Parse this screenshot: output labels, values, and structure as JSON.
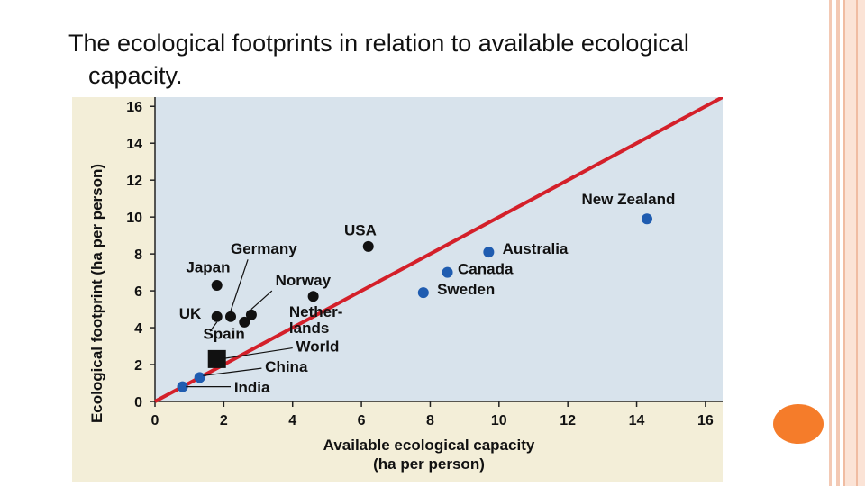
{
  "slide": {
    "title_line1": "The ecological footprints in relation to available ecological",
    "title_line2": "capacity."
  },
  "colors": {
    "background": "#ffffff",
    "plot_background": "#d8e3ec",
    "frame_background": "#f3eed8",
    "reference_line": "#d4202a",
    "black_points": "#111111",
    "blue_points": "#1f5cb0",
    "accent_orange": "#f57c2a",
    "border_peach": "#f3c9b4"
  },
  "chart_data": {
    "type": "scatter",
    "xlabel_line1": "Available ecological capacity",
    "xlabel_line2": "(ha per person)",
    "ylabel": "Ecological footprint (ha per person)",
    "xlim": [
      0,
      16.5
    ],
    "ylim": [
      0,
      16.5
    ],
    "xticks": [
      0,
      2,
      4,
      6,
      8,
      10,
      12,
      14,
      16
    ],
    "yticks": [
      0,
      2,
      4,
      6,
      8,
      10,
      12,
      14,
      16
    ],
    "grid": false,
    "reference_line": {
      "x": [
        0,
        16.5
      ],
      "y": [
        0,
        16.5
      ]
    },
    "points": [
      {
        "label": "New Zealand",
        "x": 14.3,
        "y": 9.9,
        "group": "blue",
        "marker": "circle"
      },
      {
        "label": "Australia",
        "x": 9.7,
        "y": 8.1,
        "group": "blue",
        "marker": "circle"
      },
      {
        "label": "Canada",
        "x": 8.5,
        "y": 7.0,
        "group": "blue",
        "marker": "circle"
      },
      {
        "label": "Sweden",
        "x": 7.8,
        "y": 5.9,
        "group": "blue",
        "marker": "circle"
      },
      {
        "label": "India",
        "x": 0.8,
        "y": 0.8,
        "group": "blue",
        "marker": "circle"
      },
      {
        "label": "China",
        "x": 1.3,
        "y": 1.3,
        "group": "blue",
        "marker": "circle"
      },
      {
        "label": "USA",
        "x": 6.2,
        "y": 8.4,
        "group": "black",
        "marker": "circle"
      },
      {
        "label": "Norway",
        "x": 4.6,
        "y": 5.7,
        "group": "black",
        "marker": "circle"
      },
      {
        "label": "Japan",
        "x": 1.8,
        "y": 6.3,
        "group": "black",
        "marker": "circle"
      },
      {
        "label": "Germany",
        "x": 2.2,
        "y": 4.6,
        "group": "black",
        "marker": "circle"
      },
      {
        "label": "UK",
        "x": 1.8,
        "y": 4.6,
        "group": "black",
        "marker": "circle"
      },
      {
        "label": "Spain",
        "x": 2.6,
        "y": 4.3,
        "group": "black",
        "marker": "circle"
      },
      {
        "label": "Netherlands",
        "x": 2.8,
        "y": 4.7,
        "group": "black",
        "marker": "circle"
      },
      {
        "label": "World",
        "x": 1.8,
        "y": 2.3,
        "group": "black",
        "marker": "square"
      }
    ],
    "labels": [
      {
        "text": "New Zealand",
        "x": 12.4,
        "y": 10.7,
        "bold": false
      },
      {
        "text": "Australia",
        "x": 10.1,
        "y": 8.0,
        "bold": false
      },
      {
        "text": "Canada",
        "x": 8.8,
        "y": 6.9,
        "bold": false
      },
      {
        "text": "Sweden",
        "x": 8.2,
        "y": 5.8,
        "bold": false
      },
      {
        "text": "USA",
        "x": 5.5,
        "y": 9.0,
        "bold": false
      },
      {
        "text": "Germany",
        "x": 2.2,
        "y": 8.0,
        "bold": false
      },
      {
        "text": "Japan",
        "x": 0.9,
        "y": 7.0,
        "bold": false
      },
      {
        "text": "Norway",
        "x": 3.5,
        "y": 6.3,
        "bold": false
      },
      {
        "text": "Nether-",
        "x": 3.9,
        "y": 4.6,
        "bold": false
      },
      {
        "text": "lands",
        "x": 3.9,
        "y": 3.7,
        "bold": false
      },
      {
        "text": "UK",
        "x": 0.7,
        "y": 4.5,
        "bold": false
      },
      {
        "text": "Spain",
        "x": 1.4,
        "y": 3.4,
        "bold": false
      },
      {
        "text": "World",
        "x": 4.1,
        "y": 2.7,
        "bold": true
      },
      {
        "text": "China",
        "x": 3.2,
        "y": 1.6,
        "bold": false
      },
      {
        "text": "India",
        "x": 2.3,
        "y": 0.5,
        "bold": false
      }
    ]
  }
}
